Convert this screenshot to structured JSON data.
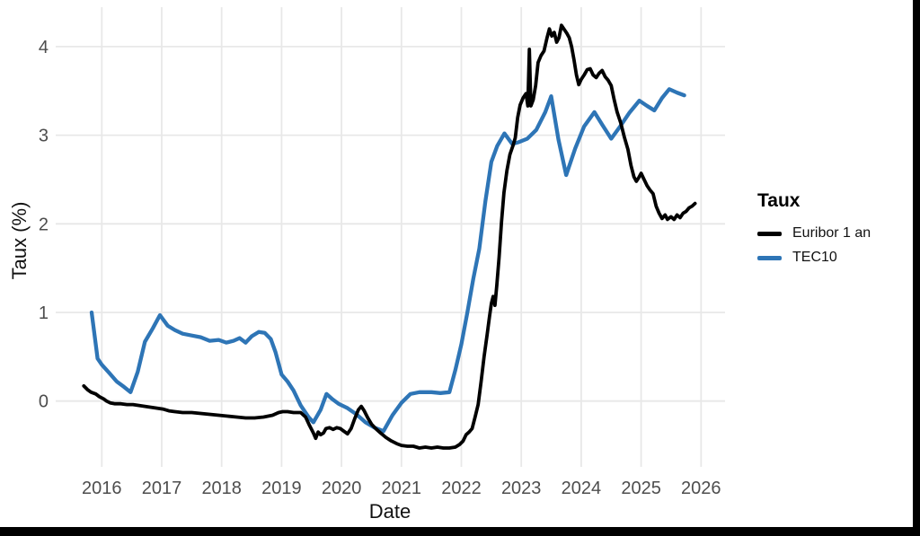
{
  "figure": {
    "x_axis_title": "Date",
    "y_axis_title": "Taux (%)",
    "legend": {
      "title": "Taux",
      "items": [
        {
          "label": "Euribor 1 an",
          "color": "#000000"
        },
        {
          "label": "TEC10",
          "color": "#2e75b6"
        }
      ]
    },
    "colors": {
      "background": "#ffffff",
      "grid": "#e8e8e8",
      "tick_text": "#4d4d4d",
      "title_text": "#111111",
      "frame_bars": "#000000",
      "euribor_line": "#000000",
      "tec10_line": "#2e75b6"
    }
  },
  "chart_data": {
    "type": "line",
    "title": "",
    "xlabel": "Date",
    "ylabel": "Taux (%)",
    "legend_title": "Taux",
    "legend_position": "right",
    "grid": true,
    "x_ticks": [
      2016,
      2017,
      2018,
      2019,
      2020,
      2021,
      2022,
      2023,
      2024,
      2025,
      2026
    ],
    "y_ticks": [
      0,
      1,
      2,
      3,
      4
    ],
    "xlim": [
      2015.2,
      2026.4
    ],
    "ylim": [
      -0.75,
      4.45
    ],
    "series": [
      {
        "name": "TEC10",
        "color": "#2e75b6",
        "width": 4.3,
        "points": [
          [
            2015.83,
            1.0
          ],
          [
            2015.93,
            0.48
          ],
          [
            2016.0,
            0.41
          ],
          [
            2016.12,
            0.32
          ],
          [
            2016.25,
            0.22
          ],
          [
            2016.37,
            0.16
          ],
          [
            2016.48,
            0.1
          ],
          [
            2016.6,
            0.33
          ],
          [
            2016.72,
            0.67
          ],
          [
            2016.85,
            0.82
          ],
          [
            2016.97,
            0.97
          ],
          [
            2017.1,
            0.85
          ],
          [
            2017.22,
            0.8
          ],
          [
            2017.35,
            0.76
          ],
          [
            2017.5,
            0.74
          ],
          [
            2017.65,
            0.72
          ],
          [
            2017.8,
            0.68
          ],
          [
            2017.95,
            0.69
          ],
          [
            2018.08,
            0.66
          ],
          [
            2018.2,
            0.68
          ],
          [
            2018.3,
            0.71
          ],
          [
            2018.4,
            0.66
          ],
          [
            2018.5,
            0.73
          ],
          [
            2018.62,
            0.78
          ],
          [
            2018.72,
            0.77
          ],
          [
            2018.82,
            0.7
          ],
          [
            2018.9,
            0.55
          ],
          [
            2019.0,
            0.3
          ],
          [
            2019.1,
            0.22
          ],
          [
            2019.2,
            0.12
          ],
          [
            2019.32,
            -0.05
          ],
          [
            2019.45,
            -0.18
          ],
          [
            2019.53,
            -0.24
          ],
          [
            2019.65,
            -0.1
          ],
          [
            2019.75,
            0.08
          ],
          [
            2019.85,
            0.02
          ],
          [
            2019.95,
            -0.03
          ],
          [
            2020.1,
            -0.08
          ],
          [
            2020.25,
            -0.15
          ],
          [
            2020.4,
            -0.24
          ],
          [
            2020.55,
            -0.3
          ],
          [
            2020.7,
            -0.34
          ],
          [
            2020.85,
            -0.16
          ],
          [
            2021.0,
            -0.02
          ],
          [
            2021.15,
            0.08
          ],
          [
            2021.3,
            0.1
          ],
          [
            2021.5,
            0.1
          ],
          [
            2021.65,
            0.09
          ],
          [
            2021.8,
            0.1
          ],
          [
            2021.9,
            0.35
          ],
          [
            2022.0,
            0.64
          ],
          [
            2022.1,
            1.0
          ],
          [
            2022.2,
            1.38
          ],
          [
            2022.3,
            1.72
          ],
          [
            2022.4,
            2.25
          ],
          [
            2022.5,
            2.7
          ],
          [
            2022.6,
            2.88
          ],
          [
            2022.72,
            3.02
          ],
          [
            2022.85,
            2.9
          ],
          [
            2022.95,
            2.92
          ],
          [
            2023.1,
            2.96
          ],
          [
            2023.25,
            3.06
          ],
          [
            2023.4,
            3.26
          ],
          [
            2023.5,
            3.44
          ],
          [
            2023.62,
            2.95
          ],
          [
            2023.75,
            2.55
          ],
          [
            2023.9,
            2.85
          ],
          [
            2024.05,
            3.1
          ],
          [
            2024.22,
            3.26
          ],
          [
            2024.35,
            3.12
          ],
          [
            2024.5,
            2.96
          ],
          [
            2024.65,
            3.1
          ],
          [
            2024.8,
            3.25
          ],
          [
            2024.97,
            3.39
          ],
          [
            2025.1,
            3.33
          ],
          [
            2025.22,
            3.28
          ],
          [
            2025.35,
            3.42
          ],
          [
            2025.47,
            3.52
          ],
          [
            2025.6,
            3.48
          ],
          [
            2025.72,
            3.45
          ]
        ]
      },
      {
        "name": "Euribor 1 an",
        "color": "#000000",
        "width": 3.8,
        "points": [
          [
            2015.7,
            0.17
          ],
          [
            2015.76,
            0.13
          ],
          [
            2015.82,
            0.1
          ],
          [
            2015.9,
            0.08
          ],
          [
            2015.96,
            0.05
          ],
          [
            2016.04,
            0.02
          ],
          [
            2016.08,
            0.0
          ],
          [
            2016.14,
            -0.02
          ],
          [
            2016.22,
            -0.03
          ],
          [
            2016.32,
            -0.03
          ],
          [
            2016.42,
            -0.04
          ],
          [
            2016.52,
            -0.04
          ],
          [
            2016.62,
            -0.05
          ],
          [
            2016.72,
            -0.06
          ],
          [
            2016.82,
            -0.07
          ],
          [
            2016.92,
            -0.08
          ],
          [
            2017.02,
            -0.09
          ],
          [
            2017.12,
            -0.11
          ],
          [
            2017.22,
            -0.12
          ],
          [
            2017.35,
            -0.13
          ],
          [
            2017.5,
            -0.13
          ],
          [
            2017.65,
            -0.14
          ],
          [
            2017.8,
            -0.15
          ],
          [
            2017.95,
            -0.16
          ],
          [
            2018.1,
            -0.17
          ],
          [
            2018.25,
            -0.18
          ],
          [
            2018.4,
            -0.19
          ],
          [
            2018.55,
            -0.19
          ],
          [
            2018.7,
            -0.18
          ],
          [
            2018.85,
            -0.16
          ],
          [
            2018.95,
            -0.13
          ],
          [
            2019.02,
            -0.12
          ],
          [
            2019.1,
            -0.12
          ],
          [
            2019.2,
            -0.13
          ],
          [
            2019.32,
            -0.13
          ],
          [
            2019.4,
            -0.18
          ],
          [
            2019.47,
            -0.28
          ],
          [
            2019.53,
            -0.36
          ],
          [
            2019.57,
            -0.42
          ],
          [
            2019.61,
            -0.35
          ],
          [
            2019.65,
            -0.38
          ],
          [
            2019.7,
            -0.36
          ],
          [
            2019.74,
            -0.31
          ],
          [
            2019.8,
            -0.3
          ],
          [
            2019.86,
            -0.32
          ],
          [
            2019.92,
            -0.3
          ],
          [
            2019.98,
            -0.31
          ],
          [
            2020.04,
            -0.34
          ],
          [
            2020.1,
            -0.37
          ],
          [
            2020.16,
            -0.31
          ],
          [
            2020.22,
            -0.2
          ],
          [
            2020.28,
            -0.1
          ],
          [
            2020.33,
            -0.06
          ],
          [
            2020.38,
            -0.11
          ],
          [
            2020.44,
            -0.19
          ],
          [
            2020.5,
            -0.26
          ],
          [
            2020.57,
            -0.31
          ],
          [
            2020.65,
            -0.36
          ],
          [
            2020.74,
            -0.41
          ],
          [
            2020.83,
            -0.45
          ],
          [
            2020.92,
            -0.48
          ],
          [
            2021.0,
            -0.5
          ],
          [
            2021.1,
            -0.51
          ],
          [
            2021.2,
            -0.51
          ],
          [
            2021.3,
            -0.53
          ],
          [
            2021.4,
            -0.52
          ],
          [
            2021.5,
            -0.53
          ],
          [
            2021.6,
            -0.52
          ],
          [
            2021.7,
            -0.53
          ],
          [
            2021.8,
            -0.53
          ],
          [
            2021.9,
            -0.52
          ],
          [
            2021.97,
            -0.49
          ],
          [
            2022.03,
            -0.45
          ],
          [
            2022.08,
            -0.38
          ],
          [
            2022.13,
            -0.35
          ],
          [
            2022.18,
            -0.31
          ],
          [
            2022.23,
            -0.18
          ],
          [
            2022.28,
            -0.04
          ],
          [
            2022.33,
            0.22
          ],
          [
            2022.38,
            0.5
          ],
          [
            2022.43,
            0.75
          ],
          [
            2022.47,
            0.95
          ],
          [
            2022.5,
            1.1
          ],
          [
            2022.53,
            1.18
          ],
          [
            2022.56,
            1.08
          ],
          [
            2022.59,
            1.3
          ],
          [
            2022.63,
            1.62
          ],
          [
            2022.67,
            2.02
          ],
          [
            2022.71,
            2.35
          ],
          [
            2022.76,
            2.6
          ],
          [
            2022.81,
            2.78
          ],
          [
            2022.86,
            2.88
          ],
          [
            2022.9,
            2.97
          ],
          [
            2022.94,
            3.2
          ],
          [
            2022.98,
            3.34
          ],
          [
            2023.03,
            3.42
          ],
          [
            2023.08,
            3.47
          ],
          [
            2023.11,
            3.33
          ],
          [
            2023.135,
            3.97
          ],
          [
            2023.16,
            3.33
          ],
          [
            2023.2,
            3.4
          ],
          [
            2023.24,
            3.56
          ],
          [
            2023.28,
            3.82
          ],
          [
            2023.33,
            3.9
          ],
          [
            2023.38,
            3.95
          ],
          [
            2023.43,
            4.1
          ],
          [
            2023.47,
            4.2
          ],
          [
            2023.51,
            4.12
          ],
          [
            2023.55,
            4.16
          ],
          [
            2023.59,
            4.05
          ],
          [
            2023.63,
            4.1
          ],
          [
            2023.67,
            4.24
          ],
          [
            2023.71,
            4.2
          ],
          [
            2023.76,
            4.15
          ],
          [
            2023.8,
            4.1
          ],
          [
            2023.84,
            4.0
          ],
          [
            2023.88,
            3.85
          ],
          [
            2023.92,
            3.68
          ],
          [
            2023.96,
            3.57
          ],
          [
            2024.0,
            3.63
          ],
          [
            2024.05,
            3.68
          ],
          [
            2024.1,
            3.74
          ],
          [
            2024.15,
            3.75
          ],
          [
            2024.2,
            3.68
          ],
          [
            2024.25,
            3.65
          ],
          [
            2024.3,
            3.7
          ],
          [
            2024.35,
            3.73
          ],
          [
            2024.4,
            3.66
          ],
          [
            2024.45,
            3.62
          ],
          [
            2024.5,
            3.56
          ],
          [
            2024.55,
            3.4
          ],
          [
            2024.6,
            3.26
          ],
          [
            2024.66,
            3.14
          ],
          [
            2024.72,
            2.98
          ],
          [
            2024.78,
            2.84
          ],
          [
            2024.83,
            2.66
          ],
          [
            2024.88,
            2.53
          ],
          [
            2024.92,
            2.48
          ],
          [
            2024.96,
            2.52
          ],
          [
            2025.0,
            2.57
          ],
          [
            2025.05,
            2.5
          ],
          [
            2025.1,
            2.43
          ],
          [
            2025.15,
            2.38
          ],
          [
            2025.2,
            2.34
          ],
          [
            2025.25,
            2.2
          ],
          [
            2025.3,
            2.12
          ],
          [
            2025.35,
            2.06
          ],
          [
            2025.4,
            2.1
          ],
          [
            2025.44,
            2.05
          ],
          [
            2025.5,
            2.08
          ],
          [
            2025.55,
            2.05
          ],
          [
            2025.6,
            2.1
          ],
          [
            2025.65,
            2.07
          ],
          [
            2025.7,
            2.12
          ],
          [
            2025.75,
            2.14
          ],
          [
            2025.8,
            2.18
          ],
          [
            2025.85,
            2.2
          ],
          [
            2025.9,
            2.23
          ]
        ]
      }
    ]
  }
}
